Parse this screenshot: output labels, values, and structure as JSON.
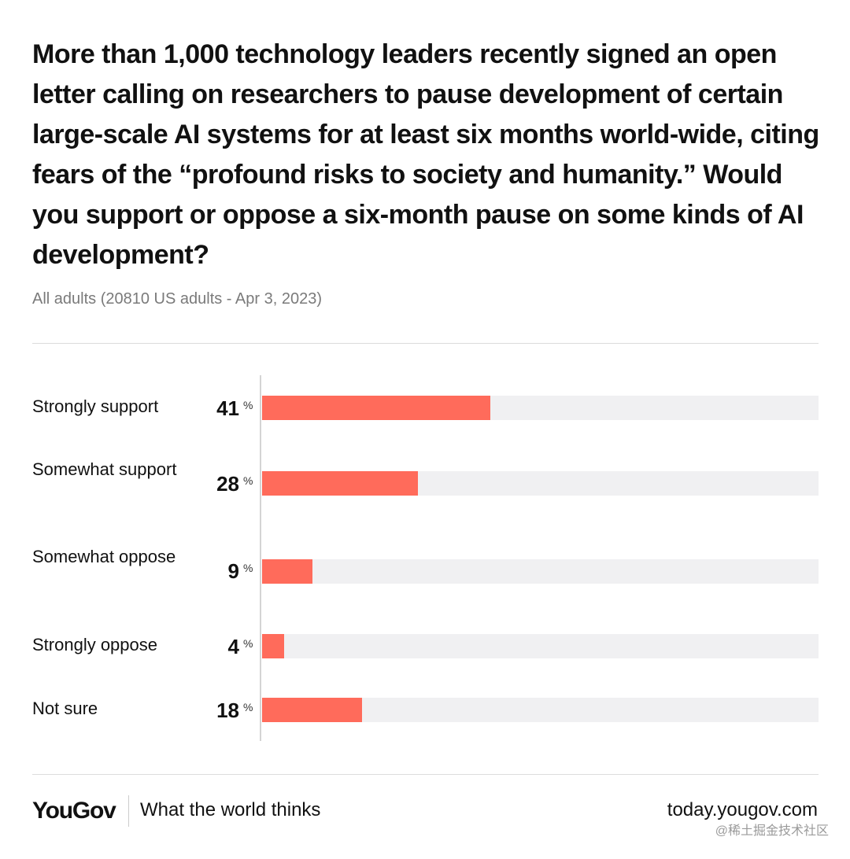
{
  "title": "More than 1,000 technology leaders recently signed an open letter calling on researchers to pause development of certain large-scale AI systems for at least six months world-wide, citing fears of the “profound risks to society and humanity.” Would you support or oppose a six-month pause on some kinds of AI development?",
  "subtitle": "All adults (20810 US adults - Apr 3, 2023)",
  "unit": "%",
  "colors": {
    "bar": "#ff6b5b",
    "track": "#f0f0f2"
  },
  "chart_data": {
    "type": "bar",
    "orientation": "horizontal",
    "categories": [
      "Strongly support",
      "Somewhat support",
      "Somewhat oppose",
      "Strongly oppose",
      "Not sure"
    ],
    "values": [
      41,
      28,
      9,
      4,
      18
    ],
    "value_labels": [
      "41",
      "28",
      "9",
      "4",
      "18"
    ],
    "xlim": [
      0,
      100
    ],
    "grid": false,
    "legend": "none"
  },
  "footer": {
    "brand": "YouGov",
    "tagline": "What the world thinks",
    "site": "today.yougov.com",
    "watermark": "@稀土掘金技术社区"
  }
}
